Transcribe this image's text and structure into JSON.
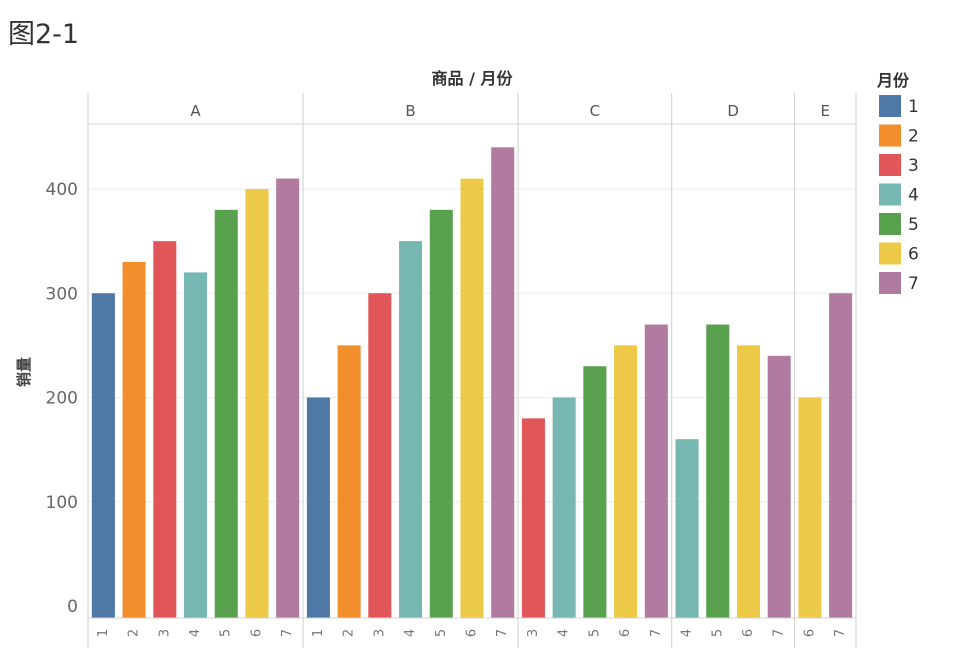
{
  "figure_label": "图2-1",
  "chart_data": {
    "type": "bar",
    "title": "商品 / 月份",
    "xlabel": "商品 / 月份",
    "ylabel": "销量",
    "ylim": [
      0,
      460
    ],
    "yticks": [
      0,
      100,
      200,
      300,
      400
    ],
    "grid": true,
    "legend": {
      "title": "月份",
      "position": "right",
      "items": [
        {
          "label": "1",
          "color": "#4e79a7"
        },
        {
          "label": "2",
          "color": "#f28e2b"
        },
        {
          "label": "3",
          "color": "#e15759"
        },
        {
          "label": "4",
          "color": "#76b7b2"
        },
        {
          "label": "5",
          "color": "#59a14f"
        },
        {
          "label": "6",
          "color": "#edc948"
        },
        {
          "label": "7",
          "color": "#b07aa1"
        }
      ]
    },
    "groups": [
      {
        "name": "A",
        "months": [
          "1",
          "2",
          "3",
          "4",
          "5",
          "6",
          "7"
        ],
        "values": [
          300,
          330,
          350,
          320,
          380,
          400,
          410
        ]
      },
      {
        "name": "B",
        "months": [
          "1",
          "2",
          "3",
          "4",
          "5",
          "6",
          "7"
        ],
        "values": [
          200,
          250,
          300,
          350,
          380,
          410,
          440
        ]
      },
      {
        "name": "C",
        "months": [
          "3",
          "4",
          "5",
          "6",
          "7"
        ],
        "values": [
          180,
          200,
          230,
          250,
          270
        ]
      },
      {
        "name": "D",
        "months": [
          "4",
          "5",
          "6",
          "7"
        ],
        "values": [
          160,
          270,
          250,
          240
        ]
      },
      {
        "name": "E",
        "months": [
          "6",
          "7"
        ],
        "values": [
          200,
          300
        ]
      }
    ]
  }
}
